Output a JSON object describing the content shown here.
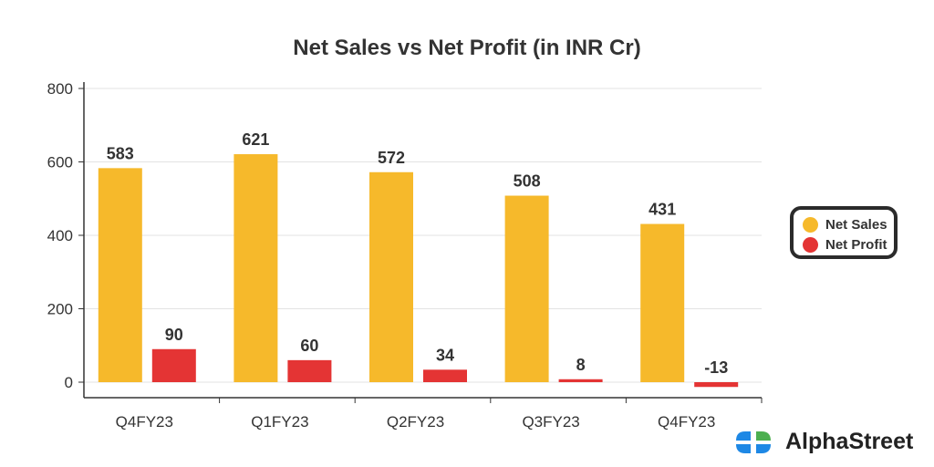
{
  "chart_data": {
    "type": "bar",
    "title": "Net Sales vs Net Profit (in INR Cr)",
    "categories": [
      "Q4FY23",
      "Q1FY23",
      "Q2FY23",
      "Q3FY23",
      "Q4FY23"
    ],
    "series": [
      {
        "name": "Net Sales",
        "color": "#F6B92B",
        "values": [
          583,
          621,
          572,
          508,
          431
        ]
      },
      {
        "name": "Net Profit",
        "color": "#E43434",
        "values": [
          90,
          60,
          34,
          8,
          -13
        ]
      }
    ],
    "ylim": [
      -50,
      800
    ],
    "yticks": [
      0,
      200,
      400,
      600,
      800
    ],
    "grid": true,
    "legend": "right",
    "xlabel": "",
    "ylabel": ""
  },
  "brand": {
    "name": "AlphaStreet"
  }
}
